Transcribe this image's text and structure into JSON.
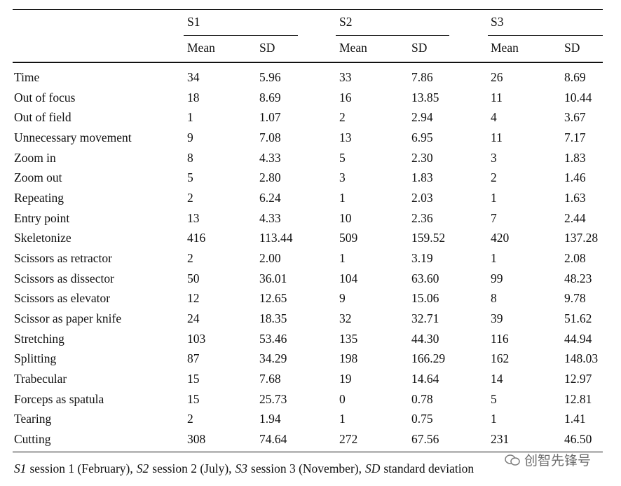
{
  "table": {
    "groups": [
      "S1",
      "S2",
      "S3"
    ],
    "subheaders": [
      "Mean",
      "SD",
      "Mean",
      "SD",
      "Mean",
      "SD"
    ],
    "rows": [
      [
        "Time",
        "34",
        "5.96",
        "33",
        "7.86",
        "26",
        "8.69"
      ],
      [
        "Out of focus",
        "18",
        "8.69",
        "16",
        "13.85",
        "11",
        "10.44"
      ],
      [
        "Out of field",
        "1",
        "1.07",
        "2",
        "2.94",
        "4",
        "3.67"
      ],
      [
        "Unnecessary movement",
        "9",
        "7.08",
        "13",
        "6.95",
        "11",
        "7.17"
      ],
      [
        "Zoom in",
        "8",
        "4.33",
        "5",
        "2.30",
        "3",
        "1.83"
      ],
      [
        "Zoom out",
        "5",
        "2.80",
        "3",
        "1.83",
        "2",
        "1.46"
      ],
      [
        "Repeating",
        "2",
        "6.24",
        "1",
        "2.03",
        "1",
        "1.63"
      ],
      [
        "Entry point",
        "13",
        "4.33",
        "10",
        "2.36",
        "7",
        "2.44"
      ],
      [
        "Skeletonize",
        "416",
        "113.44",
        "509",
        "159.52",
        "420",
        "137.28"
      ],
      [
        "Scissors as retractor",
        "2",
        "2.00",
        "1",
        "3.19",
        "1",
        "2.08"
      ],
      [
        "Scissors as dissector",
        "50",
        "36.01",
        "104",
        "63.60",
        "99",
        "48.23"
      ],
      [
        "Scissors as elevator",
        "12",
        "12.65",
        "9",
        "15.06",
        "8",
        "9.78"
      ],
      [
        "Scissor as paper knife",
        "24",
        "18.35",
        "32",
        "32.71",
        "39",
        "51.62"
      ],
      [
        "Stretching",
        "103",
        "53.46",
        "135",
        "44.30",
        "116",
        "44.94"
      ],
      [
        "Splitting",
        "87",
        "34.29",
        "198",
        "166.29",
        "162",
        "148.03"
      ],
      [
        "Trabecular",
        "15",
        "7.68",
        "19",
        "14.64",
        "14",
        "12.97"
      ],
      [
        "Forceps as spatula",
        "15",
        "25.73",
        "0",
        "0.78",
        "5",
        "12.81"
      ],
      [
        "Tearing",
        "2",
        "1.94",
        "1",
        "0.75",
        "1",
        "1.41"
      ],
      [
        "Cutting",
        "308",
        "74.64",
        "272",
        "67.56",
        "231",
        "46.50"
      ]
    ],
    "footnote": [
      {
        "abbr": "S1",
        "text": "session 1 (February),"
      },
      {
        "abbr": "S2",
        "text": "session 2 (July),"
      },
      {
        "abbr": "S3",
        "text": "session 3 (November),"
      },
      {
        "abbr": "SD",
        "text": "standard deviation"
      }
    ]
  },
  "watermark": "创智先锋号"
}
